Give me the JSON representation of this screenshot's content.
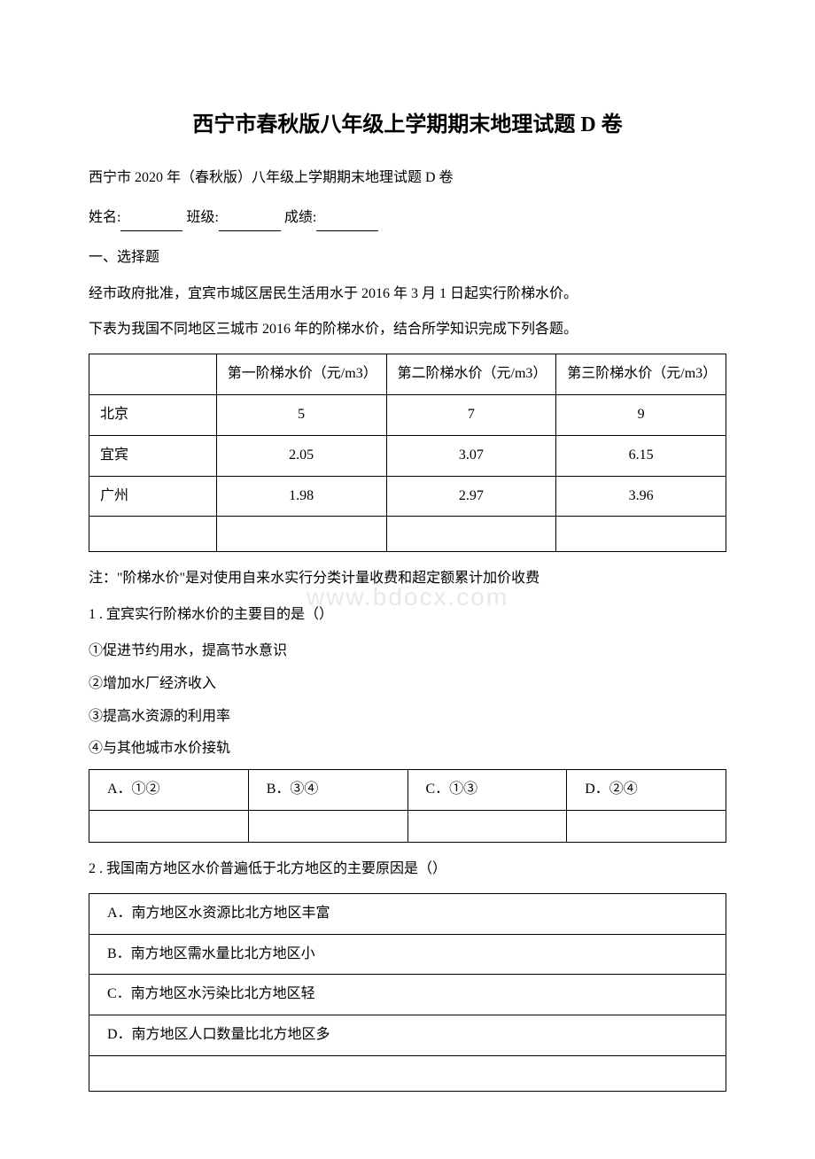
{
  "title": "西宁市春秋版八年级上学期期末地理试题 D 卷",
  "subtitle": "西宁市 2020 年（春秋版）八年级上学期期末地理试题 D 卷",
  "form": {
    "name_label": "姓名:",
    "class_label": "班级:",
    "score_label": "成绩:"
  },
  "section1_header": "一、选择题",
  "intro_p1": "经市政府批准，宜宾市城区居民生活用水于 2016 年 3 月 1 日起实行阶梯水价。",
  "intro_p2": "下表为我国不同地区三城市 2016 年的阶梯水价，结合所学知识完成下列各题。",
  "price_table": {
    "headers": [
      "",
      "第一阶梯水价（元/m3）",
      "第二阶梯水价（元/m3）",
      "第三阶梯水价（元/m3）"
    ],
    "rows": [
      [
        "北京",
        "5",
        "7",
        "9"
      ],
      [
        "宜宾",
        "2.05",
        "3.07",
        "6.15"
      ],
      [
        "广州",
        "1.98",
        "2.97",
        "3.96"
      ]
    ],
    "border_color": "#000000",
    "background_color": "#ffffff"
  },
  "note": "注：\"阶梯水价\"是对使用自来水实行分类计量收费和超定额累计加价收费",
  "watermark_text": "www.bdocx.com",
  "q1": {
    "stem": "1 . 宜宾实行阶梯水价的主要目的是（）",
    "line1": "①促进节约用水，提高节水意识",
    "line2": "②增加水厂经济收入",
    "line3": "③提高水资源的利用率",
    "line4": "④与其他城市水价接轨",
    "options": {
      "a": "A．①②",
      "b": "B．③④",
      "c": "C．①③",
      "d": "D．②④"
    }
  },
  "q2": {
    "stem": "2 . 我国南方地区水价普遍低于北方地区的主要原因是（）",
    "options": {
      "a": "A．南方地区水资源比北方地区丰富",
      "b": "B．南方地区需水量比北方地区小",
      "c": "C．南方地区水污染比北方地区轻",
      "d": "D．南方地区人口数量比北方地区多"
    }
  }
}
